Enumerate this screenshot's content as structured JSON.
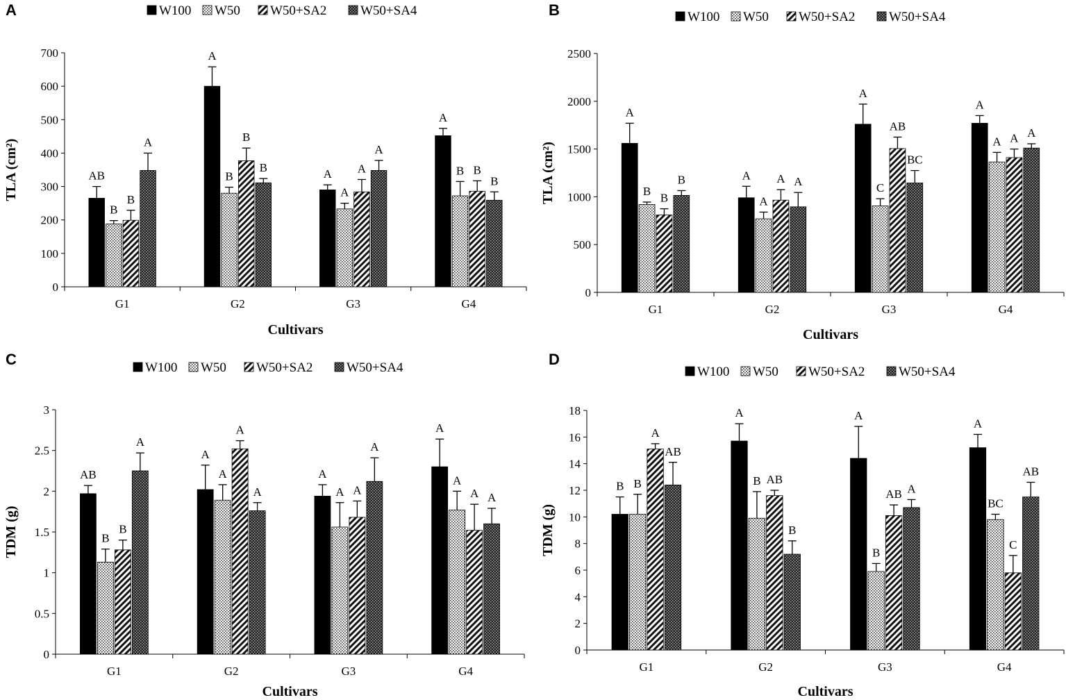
{
  "legend": [
    "W100",
    "W50",
    "W50+SA2",
    "W50+SA4"
  ],
  "chart_data": [
    {
      "panel": "A",
      "type": "bar",
      "categories": [
        "G1",
        "G2",
        "G3",
        "G4"
      ],
      "xlabel": "Cultivars",
      "ylabel": "TLA (cm²)",
      "ylim": [
        0,
        700
      ],
      "yticks": [
        "0",
        "100",
        "200",
        "300",
        "400",
        "500",
        "600",
        "700"
      ],
      "series": [
        {
          "name": "W100",
          "values": [
            265,
            600,
            290,
            452
          ],
          "errors": [
            35,
            58,
            15,
            22
          ],
          "letters": [
            "AB",
            "A",
            "A",
            "A"
          ]
        },
        {
          "name": "W50",
          "values": [
            188,
            280,
            233,
            272
          ],
          "errors": [
            10,
            18,
            17,
            43
          ],
          "letters": [
            "B",
            "B",
            "A",
            "B"
          ]
        },
        {
          "name": "W50+SA2",
          "values": [
            199,
            377,
            284,
            286
          ],
          "errors": [
            30,
            38,
            37,
            31
          ],
          "letters": [
            "B",
            "B",
            "A",
            "B"
          ]
        },
        {
          "name": "W50+SA4",
          "values": [
            348,
            311,
            348,
            259
          ],
          "errors": [
            52,
            13,
            30,
            25
          ],
          "letters": [
            "A",
            "B",
            "A",
            "B"
          ]
        }
      ]
    },
    {
      "panel": "B",
      "type": "bar",
      "categories": [
        "G1",
        "G2",
        "G3",
        "G4"
      ],
      "xlabel": "Cultivars",
      "ylabel": "TLA (cm²)",
      "ylim": [
        0,
        2500
      ],
      "yticks": [
        "0",
        "500",
        "1000",
        "1500",
        "2000",
        "2500"
      ],
      "series": [
        {
          "name": "W100",
          "values": [
            1560,
            990,
            1760,
            1770
          ],
          "errors": [
            210,
            120,
            210,
            80
          ],
          "letters": [
            "A",
            "A",
            "A",
            "A"
          ]
        },
        {
          "name": "W50",
          "values": [
            920,
            770,
            905,
            1365
          ],
          "errors": [
            25,
            70,
            75,
            100
          ],
          "letters": [
            "B",
            "A",
            "C",
            "A"
          ]
        },
        {
          "name": "W50+SA2",
          "values": [
            810,
            965,
            1505,
            1410
          ],
          "errors": [
            65,
            110,
            120,
            90
          ],
          "letters": [
            "B",
            "A",
            "AB",
            "A"
          ]
        },
        {
          "name": "W50+SA4",
          "values": [
            1015,
            895,
            1145,
            1510
          ],
          "errors": [
            50,
            150,
            130,
            45
          ],
          "letters": [
            "B",
            "A",
            "BC",
            "A"
          ]
        }
      ]
    },
    {
      "panel": "C",
      "type": "bar",
      "categories": [
        "G1",
        "G2",
        "G3",
        "G4"
      ],
      "xlabel": "Cultivars",
      "ylabel": "TDM (g)",
      "ylim": [
        0,
        3
      ],
      "yticks": [
        "0",
        "0.5",
        "1",
        "1.5",
        "2",
        "2.5",
        "3"
      ],
      "series": [
        {
          "name": "W100",
          "values": [
            1.97,
            2.02,
            1.94,
            2.3
          ],
          "errors": [
            0.1,
            0.3,
            0.14,
            0.34
          ],
          "letters": [
            "AB",
            "A",
            "A",
            "A"
          ]
        },
        {
          "name": "W50",
          "values": [
            1.13,
            1.89,
            1.56,
            1.77
          ],
          "errors": [
            0.16,
            0.19,
            0.3,
            0.23
          ],
          "letters": [
            "B",
            "A",
            "A",
            "A"
          ]
        },
        {
          "name": "W50+SA2",
          "values": [
            1.28,
            2.52,
            1.68,
            1.52
          ],
          "errors": [
            0.12,
            0.1,
            0.2,
            0.32
          ],
          "letters": [
            "B",
            "A",
            "A",
            "A"
          ]
        },
        {
          "name": "W50+SA4",
          "values": [
            2.25,
            1.76,
            2.12,
            1.6
          ],
          "errors": [
            0.22,
            0.1,
            0.29,
            0.19
          ],
          "letters": [
            "A",
            "A",
            "A",
            "A"
          ]
        }
      ]
    },
    {
      "panel": "D",
      "type": "bar",
      "categories": [
        "G1",
        "G2",
        "G3",
        "G4"
      ],
      "xlabel": "Cultivars",
      "ylabel": "TDM (g)",
      "ylim": [
        0,
        18
      ],
      "yticks": [
        "0",
        "2",
        "4",
        "6",
        "8",
        "10",
        "12",
        "14",
        "16",
        "18"
      ],
      "series": [
        {
          "name": "W100",
          "values": [
            10.2,
            15.7,
            14.4,
            15.2
          ],
          "errors": [
            1.3,
            1.3,
            2.4,
            1.0
          ],
          "letters": [
            "B",
            "A",
            "A",
            "A"
          ]
        },
        {
          "name": "W50",
          "values": [
            10.2,
            9.9,
            5.9,
            9.8
          ],
          "errors": [
            1.5,
            2.0,
            0.6,
            0.4
          ],
          "letters": [
            "B",
            "B",
            "B",
            "BC"
          ]
        },
        {
          "name": "W50+SA2",
          "values": [
            15.1,
            11.6,
            10.1,
            5.8
          ],
          "errors": [
            0.4,
            0.4,
            0.8,
            1.3
          ],
          "letters": [
            "A",
            "AB",
            "AB",
            "C"
          ]
        },
        {
          "name": "W50+SA4",
          "values": [
            12.4,
            7.2,
            10.7,
            11.5
          ],
          "errors": [
            1.7,
            1.0,
            0.6,
            1.1
          ],
          "letters": [
            "AB",
            "B",
            "A",
            "AB"
          ]
        }
      ]
    }
  ]
}
